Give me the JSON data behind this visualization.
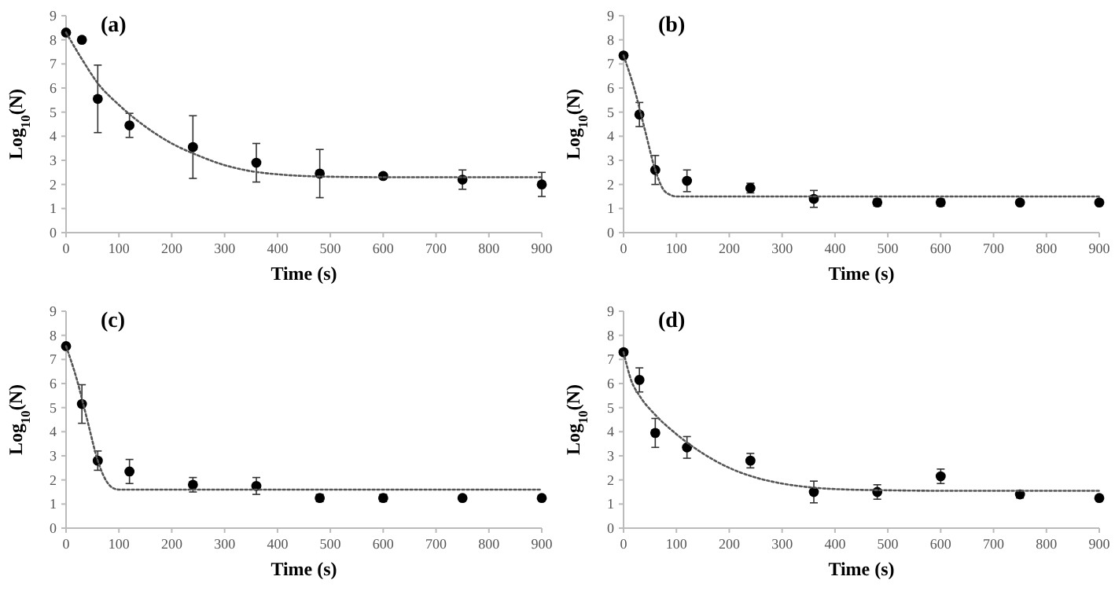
{
  "chart_data": [
    {
      "type": "scatter",
      "title": "(a)",
      "xlabel": "Time (s)",
      "ylabel": "Log$_{10}$(N)",
      "xlim": [
        0,
        900
      ],
      "xticks": [
        0,
        100,
        200,
        300,
        400,
        500,
        600,
        700,
        800,
        900
      ],
      "ylim": [
        0,
        9
      ],
      "yticks": [
        0,
        1,
        2,
        3,
        4,
        5,
        6,
        7,
        8,
        9
      ],
      "marker": "circle",
      "series": [
        {
          "color": "#000000",
          "x": [
            0,
            30,
            60,
            120,
            240,
            360,
            480,
            600,
            750,
            900
          ],
          "values": [
            8.3,
            8.0,
            5.55,
            4.45,
            3.55,
            2.9,
            2.45,
            2.35,
            2.2,
            2.0
          ],
          "errors": [
            null,
            null,
            1.4,
            0.5,
            1.3,
            0.8,
            1.0,
            0.1,
            0.4,
            0.5
          ]
        },
        {
          "type": "line",
          "color": "#555555",
          "line_style": "dotted",
          "marker": "none",
          "x": [
            0,
            30,
            60,
            100,
            150,
            200,
            250,
            300,
            350,
            400,
            450,
            500,
            600,
            700,
            900
          ],
          "values": [
            8.3,
            7.2,
            6.2,
            5.3,
            4.4,
            3.7,
            3.2,
            2.8,
            2.55,
            2.42,
            2.35,
            2.32,
            2.3,
            2.3,
            2.3
          ]
        }
      ]
    },
    {
      "type": "scatter",
      "title": "(b)",
      "xlabel": "Time (s)",
      "ylabel": "Log$_{10}$(N)",
      "xlim": [
        0,
        900
      ],
      "xticks": [
        0,
        100,
        200,
        300,
        400,
        500,
        600,
        700,
        800,
        900
      ],
      "ylim": [
        0,
        9
      ],
      "yticks": [
        0,
        1,
        2,
        3,
        4,
        5,
        6,
        7,
        8,
        9
      ],
      "marker": "circle",
      "series": [
        {
          "color": "#000000",
          "x": [
            0,
            30,
            60,
            120,
            240,
            360,
            480,
            600,
            750,
            900
          ],
          "values": [
            7.35,
            4.9,
            2.6,
            2.15,
            1.85,
            1.4,
            1.25,
            1.25,
            1.25,
            1.25
          ],
          "errors": [
            null,
            0.5,
            0.6,
            0.45,
            0.2,
            0.35,
            0.15,
            0.15,
            null,
            null
          ]
        },
        {
          "type": "line",
          "color": "#555555",
          "line_style": "dotted",
          "marker": "none",
          "x": [
            0,
            20,
            40,
            60,
            75,
            90,
            100,
            900
          ],
          "values": [
            7.35,
            6.0,
            4.3,
            2.6,
            1.8,
            1.55,
            1.5,
            1.5
          ]
        }
      ]
    },
    {
      "type": "scatter",
      "title": "(c)",
      "xlabel": "Time (s)",
      "ylabel": "Log$_{10}$(N)",
      "xlim": [
        0,
        900
      ],
      "xticks": [
        0,
        100,
        200,
        300,
        400,
        500,
        600,
        700,
        800,
        900
      ],
      "ylim": [
        0,
        9
      ],
      "yticks": [
        0,
        1,
        2,
        3,
        4,
        5,
        6,
        7,
        8,
        9
      ],
      "marker": "circle",
      "series": [
        {
          "color": "#000000",
          "x": [
            0,
            30,
            60,
            120,
            240,
            360,
            480,
            600,
            750,
            900
          ],
          "values": [
            7.55,
            5.15,
            2.8,
            2.35,
            1.8,
            1.75,
            1.25,
            1.25,
            1.25,
            1.25
          ],
          "errors": [
            null,
            0.8,
            0.4,
            0.5,
            0.3,
            0.35,
            0.15,
            0.15,
            null,
            null
          ]
        },
        {
          "type": "line",
          "color": "#555555",
          "line_style": "dotted",
          "marker": "none",
          "x": [
            0,
            20,
            40,
            60,
            75,
            90,
            100,
            900
          ],
          "values": [
            7.55,
            6.2,
            4.5,
            2.8,
            2.0,
            1.65,
            1.6,
            1.6
          ]
        }
      ]
    },
    {
      "type": "scatter",
      "title": "(d)",
      "xlabel": "Time (s)",
      "ylabel": "Log$_{10}$(N)",
      "xlim": [
        0,
        900
      ],
      "xticks": [
        0,
        100,
        200,
        300,
        400,
        500,
        600,
        700,
        800,
        900
      ],
      "ylim": [
        0,
        9
      ],
      "yticks": [
        0,
        1,
        2,
        3,
        4,
        5,
        6,
        7,
        8,
        9
      ],
      "marker": "circle",
      "series": [
        {
          "color": "#000000",
          "x": [
            0,
            30,
            60,
            120,
            240,
            360,
            480,
            600,
            750,
            900
          ],
          "values": [
            7.3,
            6.15,
            3.95,
            3.35,
            2.8,
            1.5,
            1.5,
            2.15,
            1.4,
            1.25
          ],
          "errors": [
            null,
            0.5,
            0.6,
            0.45,
            0.3,
            0.45,
            0.3,
            0.3,
            0.15,
            null
          ]
        },
        {
          "type": "line",
          "color": "#555555",
          "line_style": "dotted",
          "marker": "none",
          "x": [
            0,
            15,
            30,
            60,
            100,
            150,
            200,
            250,
            300,
            350,
            400,
            500,
            600,
            900
          ],
          "values": [
            7.3,
            6.1,
            5.5,
            4.7,
            3.9,
            3.1,
            2.5,
            2.1,
            1.85,
            1.7,
            1.62,
            1.57,
            1.55,
            1.55
          ]
        }
      ]
    }
  ]
}
